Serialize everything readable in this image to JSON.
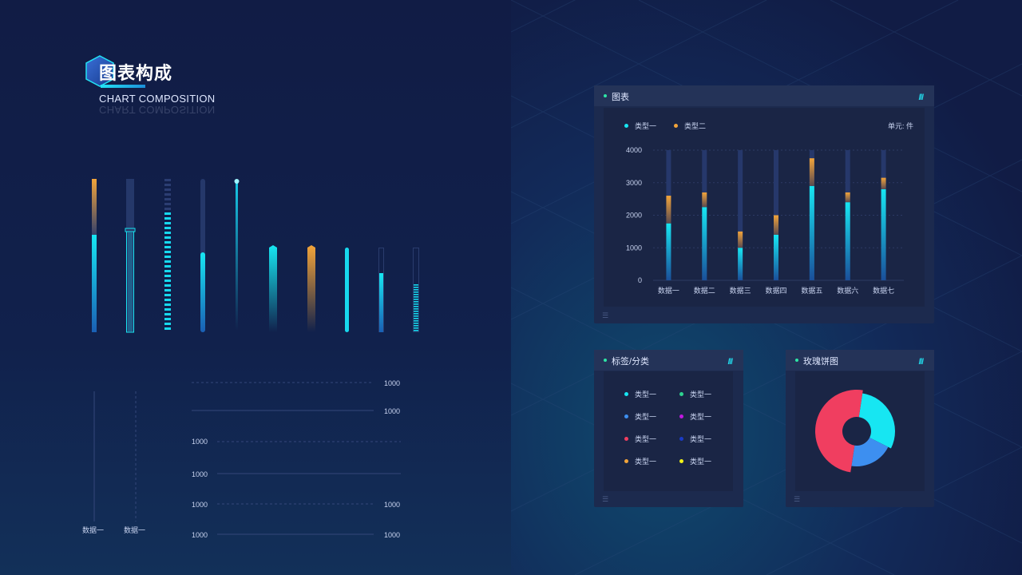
{
  "header": {
    "title": "图表构成",
    "subtitle": "CHART COMPOSITION"
  },
  "bottom_left": {
    "col_labels": [
      "数据一",
      "数据一"
    ],
    "line_labels_right_top": [
      "1000",
      "1000"
    ],
    "line_labels_left": [
      "1000",
      "1000",
      "1000",
      "1000"
    ],
    "line_labels_right_bottom": [
      "1000",
      "1000"
    ]
  },
  "chart_panel": {
    "title": "图表",
    "marks": "///",
    "unit": "单元: 件",
    "legend": [
      {
        "name": "类型一",
        "color": "#17e6f2"
      },
      {
        "name": "类型二",
        "color": "#f2a43a"
      }
    ]
  },
  "chart_data": {
    "type": "bar",
    "stacked": true,
    "categories": [
      "数据一",
      "数据二",
      "数据三",
      "数据四",
      "数据五",
      "数据六",
      "数据七"
    ],
    "series": [
      {
        "name": "类型一",
        "values": [
          1750,
          2250,
          1000,
          1400,
          2900,
          2400,
          2800
        ]
      },
      {
        "name": "类型二",
        "values": [
          850,
          450,
          500,
          600,
          850,
          300,
          350
        ]
      }
    ],
    "ylim": [
      0,
      4000
    ],
    "yticks": [
      "0",
      "1000",
      "2000",
      "3000",
      "4000"
    ],
    "grid": true,
    "legend_position": "top-left"
  },
  "tag_panel": {
    "title": "标签/分类",
    "marks": "///",
    "items": [
      {
        "label": "类型一",
        "color": "#17e6f2"
      },
      {
        "label": "类型一",
        "color": "#2ed38f"
      },
      {
        "label": "类型一",
        "color": "#3d8ff0"
      },
      {
        "label": "类型一",
        "color": "#c018e0"
      },
      {
        "label": "类型一",
        "color": "#f03e60"
      },
      {
        "label": "类型一",
        "color": "#1a3bc7"
      },
      {
        "label": "类型一",
        "color": "#f2a43a"
      },
      {
        "label": "类型一",
        "color": "#f2f218"
      }
    ]
  },
  "rose_panel": {
    "title": "玫瑰饼图",
    "marks": "///",
    "slices": [
      {
        "value": 30,
        "color": "#17e6f2"
      },
      {
        "value": 20,
        "color": "#3d8ff0"
      },
      {
        "value": 50,
        "color": "#f03e60"
      }
    ]
  }
}
